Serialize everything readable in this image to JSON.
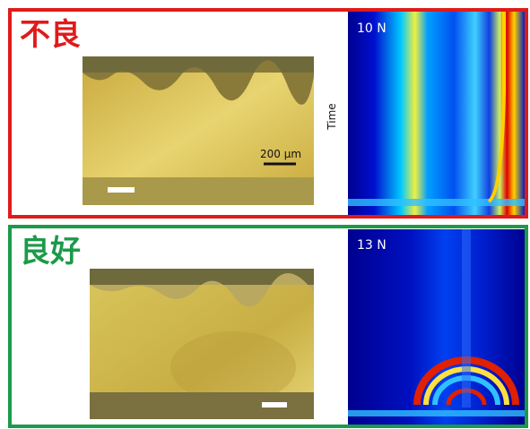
{
  "panels": [
    {
      "label": "不良",
      "force": "10 N",
      "scale_bar": "200 µm",
      "axis": "Time"
    },
    {
      "label": "良好",
      "force": "13 N"
    }
  ]
}
